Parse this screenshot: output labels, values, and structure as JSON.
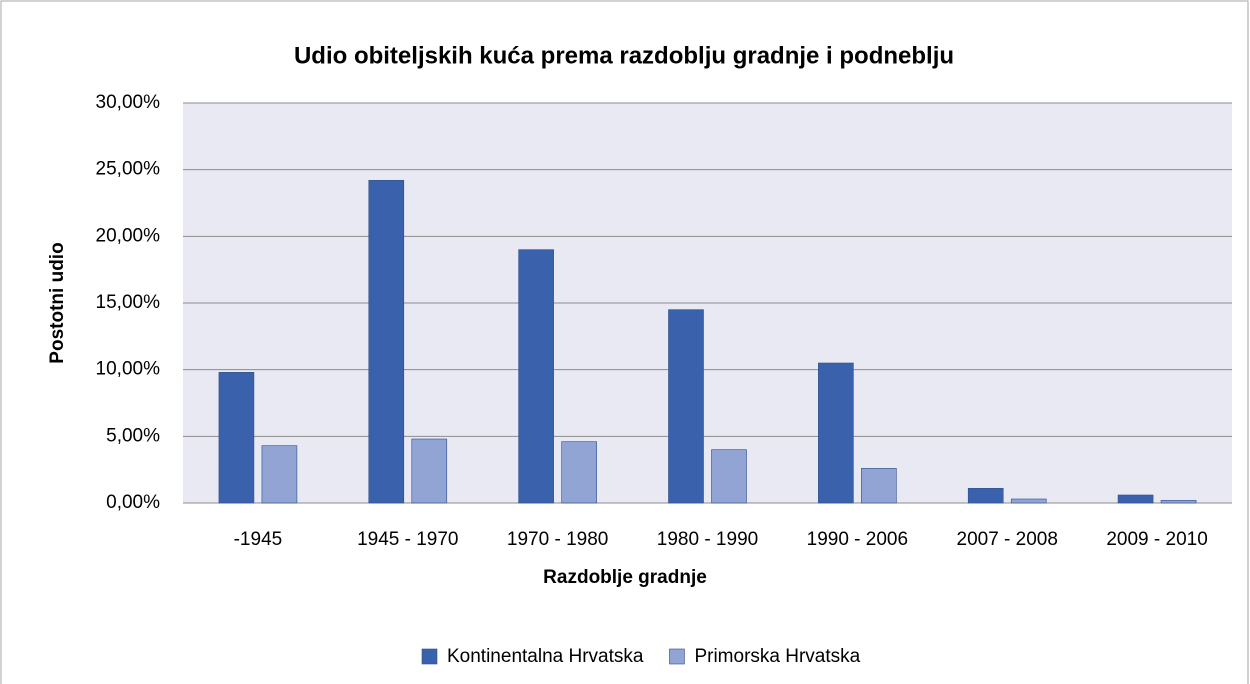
{
  "chart_data": {
    "type": "bar",
    "title": "Udio obiteljskih kuća prema razdoblju gradnje i podneblju",
    "x_label": "Razdoblje gradnje",
    "y_label": "Postotni udio",
    "categories": [
      "-1945",
      "1945 - 1970",
      "1970 - 1980",
      "1980 - 1990",
      "1990 - 2006",
      "2007 - 2008",
      "2009 - 2010"
    ],
    "series": [
      {
        "name": "Kontinentalna Hrvatska",
        "color": "#3a62ac",
        "values": [
          9.8,
          24.2,
          19.0,
          14.5,
          10.5,
          1.1,
          0.6
        ]
      },
      {
        "name": "Primorska Hrvatska",
        "color": "#91a4d4",
        "values": [
          4.3,
          4.8,
          4.6,
          4.0,
          2.6,
          0.3,
          0.2
        ]
      }
    ],
    "ylim": [
      0,
      30
    ],
    "yticks": [
      {
        "value": 0,
        "label": "0,00%"
      },
      {
        "value": 5,
        "label": "5,00%"
      },
      {
        "value": 10,
        "label": "10,00%"
      },
      {
        "value": 15,
        "label": "15,00%"
      },
      {
        "value": 20,
        "label": "20,00%"
      },
      {
        "value": 25,
        "label": "25,00%"
      },
      {
        "value": 30,
        "label": "30,00%"
      }
    ],
    "grid": true,
    "legend": "bottom"
  }
}
